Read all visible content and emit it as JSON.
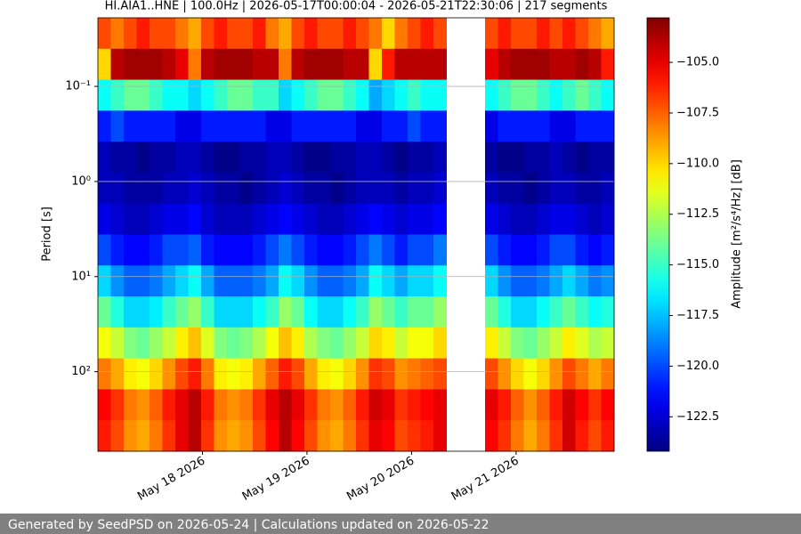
{
  "chart_data": {
    "type": "heatmap",
    "title": "HI.AIA1..HNE | 100.0Hz | 2026-05-17T00:00:04 - 2026-05-21T22:30:06 | 217 segments",
    "y_label": "Period [s]",
    "colorbar_label": "Amplitude [m²/s⁴/Hz] [dB]",
    "colormap": "jet",
    "xlim": [
      "2026-05-17T00:00:04",
      "2026-05-21T22:30:06"
    ],
    "xticks": [
      {
        "value": "2026-05-18T00:00:00",
        "label": "May 18 2026"
      },
      {
        "value": "2026-05-19T00:00:00",
        "label": "May 19 2026"
      },
      {
        "value": "2026-05-20T00:00:00",
        "label": "May 20 2026"
      },
      {
        "value": "2026-05-21T00:00:00",
        "label": "May 21 2026"
      }
    ],
    "ylim": [
      0.019,
      686
    ],
    "y_log": true,
    "y_inverted": true,
    "yticks": [
      {
        "value": 0.1,
        "label": "10⁻¹"
      },
      {
        "value": 1,
        "label": "10⁰"
      },
      {
        "value": 10,
        "label": "10¹"
      },
      {
        "value": 100,
        "label": "10²"
      }
    ],
    "grid": true,
    "zlim": [
      -124.2,
      -102.8
    ],
    "zticks": [
      {
        "value": -105,
        "label": "−105.0"
      },
      {
        "value": -107.5,
        "label": "−107.5"
      },
      {
        "value": -110,
        "label": "−110.0"
      },
      {
        "value": -112.5,
        "label": "−112.5"
      },
      {
        "value": -115,
        "label": "−115.0"
      },
      {
        "value": -117.5,
        "label": "−117.5"
      },
      {
        "value": -120,
        "label": "−120.0"
      },
      {
        "value": -122.5,
        "label": "−122.5"
      }
    ],
    "z": [
      [
        -107,
        -108,
        -107,
        -106,
        -107,
        -107,
        -108,
        -109,
        -107,
        -106,
        -107,
        -107,
        -106,
        -108,
        -109,
        -107,
        -106,
        -107,
        -107,
        -106,
        -107,
        -108,
        -110,
        -108,
        -107,
        -106,
        -107,
        null,
        null,
        null,
        -107,
        -106,
        -107,
        -107,
        -106,
        -107,
        -106,
        -107,
        -108,
        -109
      ],
      [
        -110,
        -104,
        -103.5,
        -103.5,
        -103.5,
        -104,
        -105,
        -108,
        -104,
        -103.5,
        -103.5,
        -103.5,
        -104,
        -104,
        -108,
        -104,
        -103.5,
        -103.5,
        -103.5,
        -104,
        -104,
        -110,
        -106,
        -104,
        -104,
        -104,
        -104,
        null,
        null,
        null,
        -105,
        -104,
        -103.5,
        -103.5,
        -103.5,
        -104,
        -104,
        -103.5,
        -104,
        -106
      ],
      [
        -116,
        -115,
        -114,
        -114,
        -115,
        -116,
        -116,
        -117,
        -116,
        -115,
        -114,
        -114,
        -115,
        -115,
        -117,
        -116,
        -115,
        -114,
        -114,
        -115,
        -116,
        -118,
        -117,
        -116,
        -115,
        -116,
        -116,
        null,
        null,
        null,
        -116,
        -115,
        -114,
        -114,
        -115,
        -116,
        -115,
        -114,
        -115,
        -116
      ],
      [
        -121,
        -120,
        -121,
        -121,
        -121,
        -121,
        -122,
        -122,
        -121,
        -121,
        -121,
        -121,
        -121,
        -122,
        -122,
        -121,
        -121,
        -121,
        -121,
        -121,
        -122,
        -122,
        -121,
        -121,
        -120,
        -121,
        -121,
        null,
        null,
        null,
        -122,
        -121,
        -121,
        -121,
        -121,
        -122,
        -122,
        -121,
        -121,
        -121
      ],
      [
        -123,
        -123.5,
        -123.5,
        -124,
        -123.5,
        -123.5,
        -123,
        -123,
        -123.5,
        -124,
        -124,
        -123.5,
        -123.5,
        -123,
        -123,
        -123.5,
        -124,
        -124,
        -123.5,
        -123.5,
        -123,
        -123,
        -123.5,
        -124,
        -123.5,
        -123.5,
        -123,
        null,
        null,
        null,
        -123.5,
        -124,
        -124,
        -123.5,
        -123.5,
        -123,
        -123.5,
        -124,
        -123.5,
        -123.5
      ],
      [
        -123,
        -123,
        -123.5,
        -123.5,
        -123.5,
        -123,
        -123,
        -122.5,
        -123,
        -123.5,
        -123.5,
        -124,
        -123.5,
        -123,
        -122.5,
        -123,
        -123.5,
        -123.5,
        -124,
        -123.5,
        -123,
        -123,
        -123,
        -123.5,
        -123,
        -123,
        -122.5,
        null,
        null,
        null,
        -123,
        -123.5,
        -123.5,
        -124,
        -123.5,
        -123,
        -123,
        -123.5,
        -123.5,
        -123
      ],
      [
        -122,
        -122.5,
        -123,
        -123,
        -122.5,
        -122,
        -122,
        -121.5,
        -122.5,
        -123,
        -123,
        -123,
        -122.5,
        -122,
        -121.5,
        -122,
        -122.5,
        -123,
        -123,
        -122.5,
        -122,
        -121.5,
        -122,
        -122.5,
        -122,
        -122,
        -121.5,
        null,
        null,
        null,
        -122,
        -122.5,
        -123,
        -123,
        -122.5,
        -122,
        -122,
        -122.5,
        -123,
        -122.5
      ],
      [
        -120,
        -121,
        -121.5,
        -121.5,
        -121,
        -120,
        -120,
        -119.5,
        -121,
        -121.5,
        -121.5,
        -121.5,
        -121,
        -120,
        -119,
        -120,
        -121,
        -121.5,
        -121.5,
        -121,
        -120,
        -119,
        -120,
        -121,
        -120,
        -120,
        -119,
        null,
        null,
        null,
        -120,
        -121,
        -121.5,
        -121.5,
        -121,
        -120,
        -120,
        -121,
        -121.5,
        -121
      ],
      [
        -117,
        -118.5,
        -119.5,
        -119.5,
        -119,
        -118,
        -117,
        -116,
        -118,
        -119.5,
        -119.5,
        -119.5,
        -119,
        -118,
        -116,
        -117,
        -118.5,
        -119.5,
        -119.5,
        -119,
        -118,
        -116,
        -117,
        -118,
        -117,
        -117,
        -116,
        null,
        null,
        null,
        -117,
        -118.5,
        -119.5,
        -119.5,
        -119,
        -118,
        -117,
        -118,
        -119,
        -118.5
      ],
      [
        -114,
        -115.5,
        -117,
        -117,
        -116.5,
        -115,
        -114,
        -113,
        -115,
        -117,
        -117,
        -117,
        -116,
        -115,
        -113,
        -114,
        -116,
        -117,
        -117,
        -116,
        -115,
        -113,
        -114,
        -115,
        -114,
        -114,
        -113,
        null,
        null,
        null,
        -114,
        -115.5,
        -117,
        -117,
        -116,
        -115,
        -114,
        -115,
        -116,
        -115.5
      ],
      [
        -111,
        -112,
        -113.5,
        -114,
        -113,
        -112,
        -110.5,
        -109.5,
        -111.5,
        -113.5,
        -114,
        -113.5,
        -112.5,
        -111,
        -109.5,
        -110.5,
        -112.5,
        -113.5,
        -114,
        -113,
        -112,
        -110,
        -110.5,
        -112,
        -111,
        -111,
        -110,
        null,
        null,
        null,
        -110.5,
        -112,
        -113.5,
        -114,
        -113,
        -112,
        -110.5,
        -111.5,
        -112.5,
        -112
      ],
      [
        -108,
        -109,
        -110.5,
        -111,
        -110,
        -108.5,
        -107,
        -106,
        -108,
        -110.5,
        -111,
        -110.5,
        -109,
        -107.5,
        -106,
        -107,
        -109,
        -110.5,
        -111,
        -110,
        -108.5,
        -106.5,
        -107,
        -108.5,
        -108,
        -107.5,
        -107,
        null,
        null,
        null,
        -107,
        -108.5,
        -110,
        -111,
        -110,
        -108.5,
        -107,
        -108,
        -109,
        -108
      ],
      [
        -105.5,
        -106.5,
        -108,
        -108.5,
        -107.5,
        -106,
        -105,
        -104,
        -106,
        -108,
        -108.5,
        -108,
        -106.5,
        -105,
        -104,
        -105,
        -106.5,
        -108,
        -108.5,
        -107.5,
        -106,
        -104.5,
        -105,
        -106.5,
        -106,
        -105.5,
        -105,
        null,
        null,
        null,
        -105,
        -106,
        -107.5,
        -108.5,
        -107.5,
        -106,
        -104.5,
        -105.5,
        -106.5,
        -105.5
      ],
      [
        -106,
        -107,
        -108.5,
        -109,
        -108,
        -106.5,
        -105,
        -104,
        -106.5,
        -108.5,
        -109,
        -108.5,
        -107,
        -105.5,
        -104,
        -105.5,
        -107,
        -108.5,
        -109,
        -108,
        -106.5,
        -105,
        -105.5,
        -107,
        -106.5,
        -106,
        -105,
        null,
        null,
        null,
        -105.5,
        -106.5,
        -108,
        -109,
        -108,
        -106.5,
        -104.5,
        -106,
        -107,
        -106
      ]
    ]
  },
  "footer": "Generated by SeedPSD on 2026-05-24 | Calculations updated on 2026-05-22"
}
